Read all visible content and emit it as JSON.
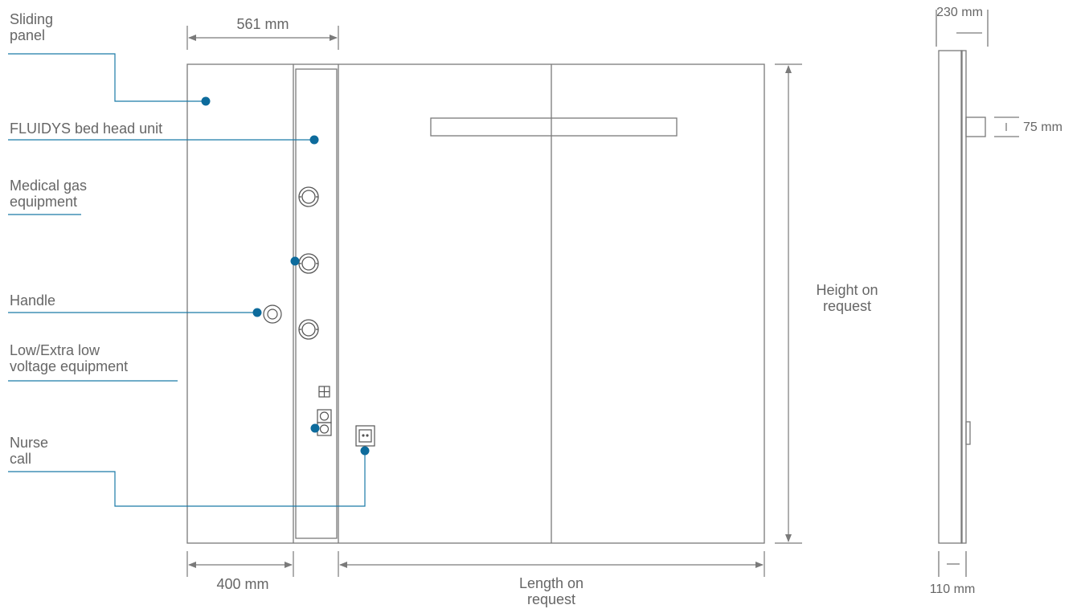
{
  "callouts": {
    "sliding_panel": [
      "Sliding",
      "panel"
    ],
    "bed_head_unit": "FLUIDYS bed head unit",
    "medical_gas": [
      "Medical gas",
      "equipment"
    ],
    "handle": "Handle",
    "low_voltage": [
      "Low/Extra low",
      "voltage equipment"
    ],
    "nurse_call": [
      "Nurse",
      "call"
    ]
  },
  "dimensions": {
    "top_width": "561 mm",
    "bottom_left": "400 mm",
    "length": [
      "Length on",
      "request"
    ],
    "height": [
      "Height on",
      "request"
    ],
    "side_depth": "230 mm",
    "side_shelf": "75 mm",
    "side_base": "110 mm"
  },
  "colors": {
    "line": "#7a7a7a",
    "callout": "#1a7aa8",
    "dot": "#0d6b9c",
    "text": "#666666"
  }
}
